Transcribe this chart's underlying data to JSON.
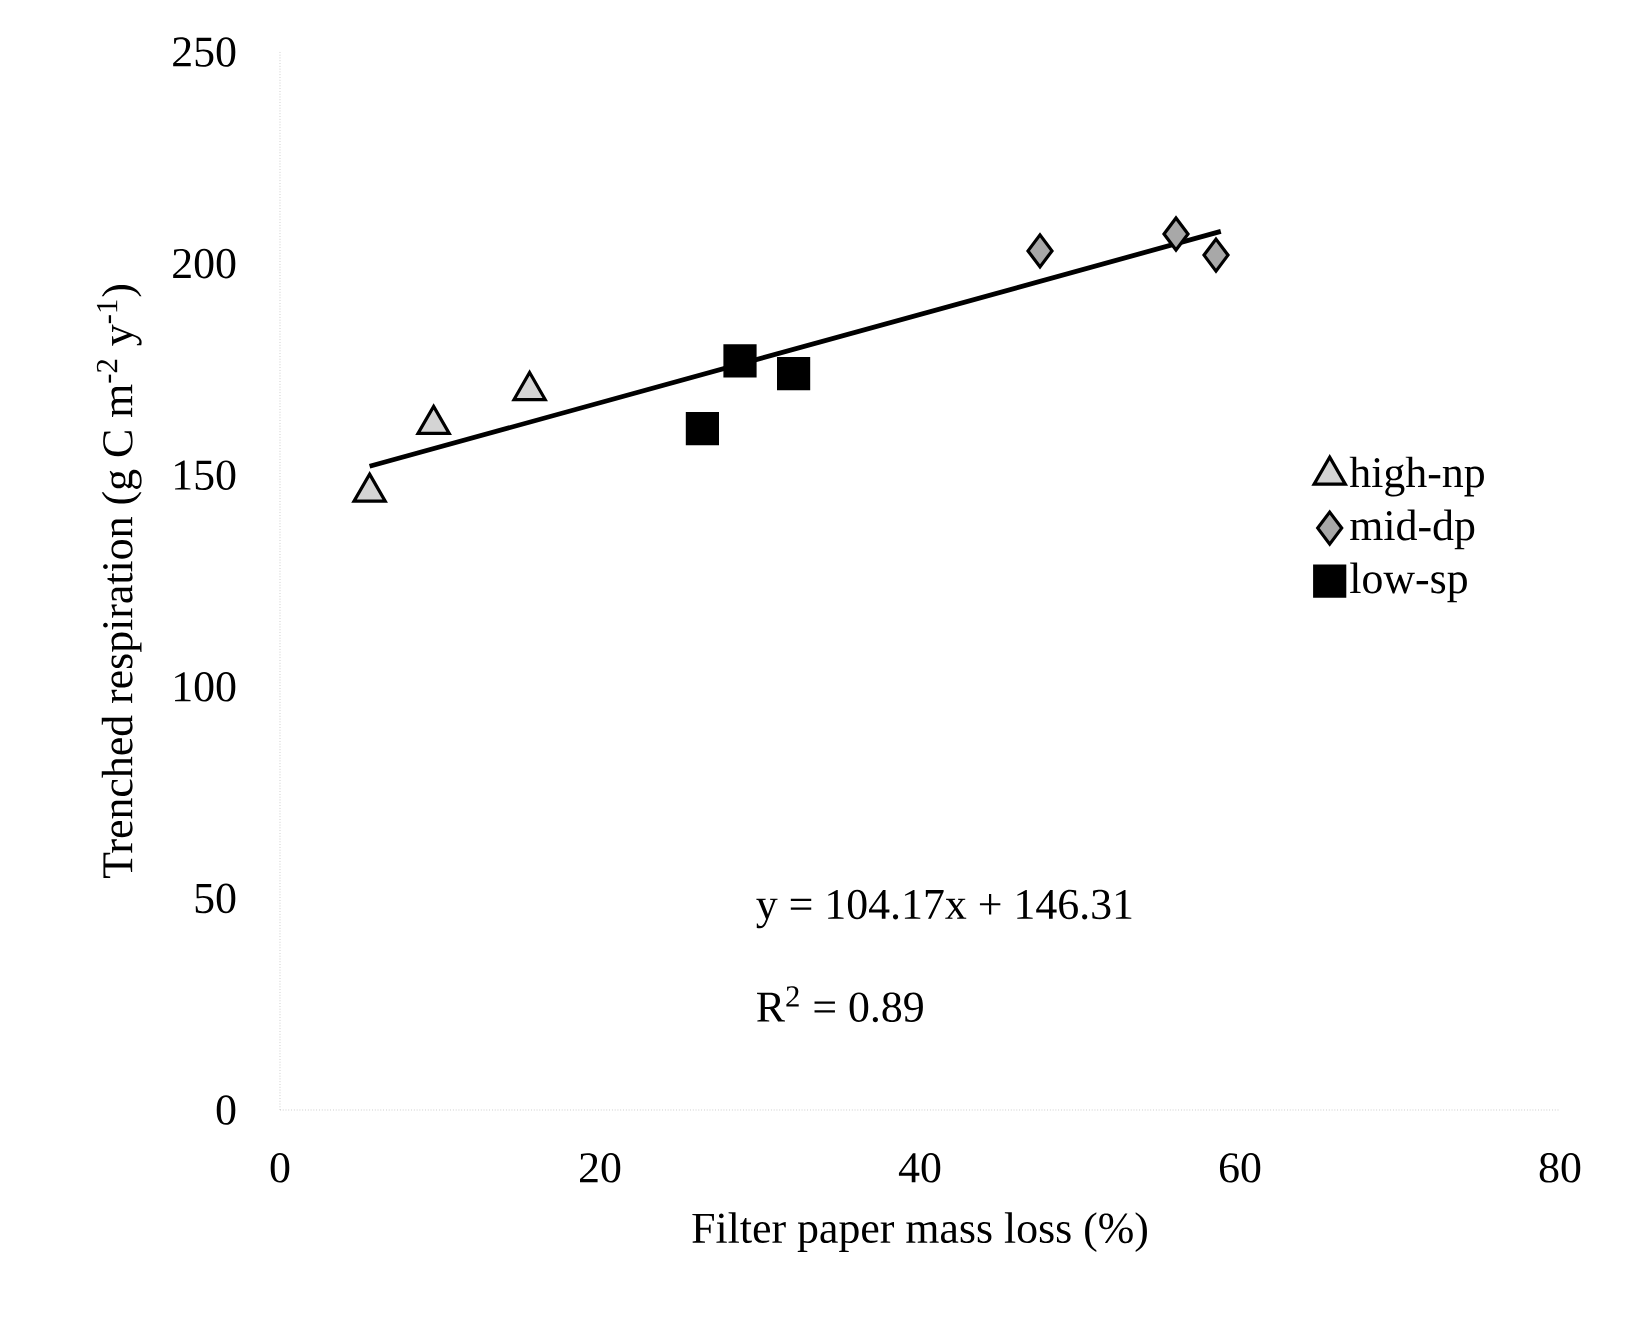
{
  "chart_data": {
    "type": "scatter",
    "xlabel": "Filter paper mass loss (%)",
    "ylabel": "Trenched respiration (g C m$^{-2}$ y$^{-1}$)",
    "xlim": [
      0,
      80
    ],
    "ylim": [
      0,
      250
    ],
    "xticks": [
      0,
      20,
      40,
      60,
      80
    ],
    "yticks": [
      0,
      50,
      100,
      150,
      200,
      250
    ],
    "grid": false,
    "legend": "right",
    "series": [
      {
        "name": "high-np",
        "color": "#d4d4d4",
        "marker": "triangle",
        "x": [
          5.6,
          9.6,
          15.6
        ],
        "values": [
          146,
          162,
          170
        ]
      },
      {
        "name": "mid-dp",
        "color": "#a8a8a8",
        "marker": "diamond",
        "x": [
          47.5,
          56,
          58.5
        ],
        "values": [
          203,
          207,
          202
        ]
      },
      {
        "name": "low-sp",
        "color": "#000000",
        "marker": "square",
        "x": [
          26.4,
          28.75,
          32.1
        ],
        "values": [
          161,
          177,
          174
        ]
      },
      {
        "type": "line",
        "color": "#000000",
        "marker": "none",
        "x": [
          5.6,
          58.8
        ],
        "values": [
          152.1,
          207.6
        ]
      }
    ],
    "annotations": [
      "y = 104.17x + 146.31",
      "R$^{2}$ = 0.89"
    ]
  }
}
